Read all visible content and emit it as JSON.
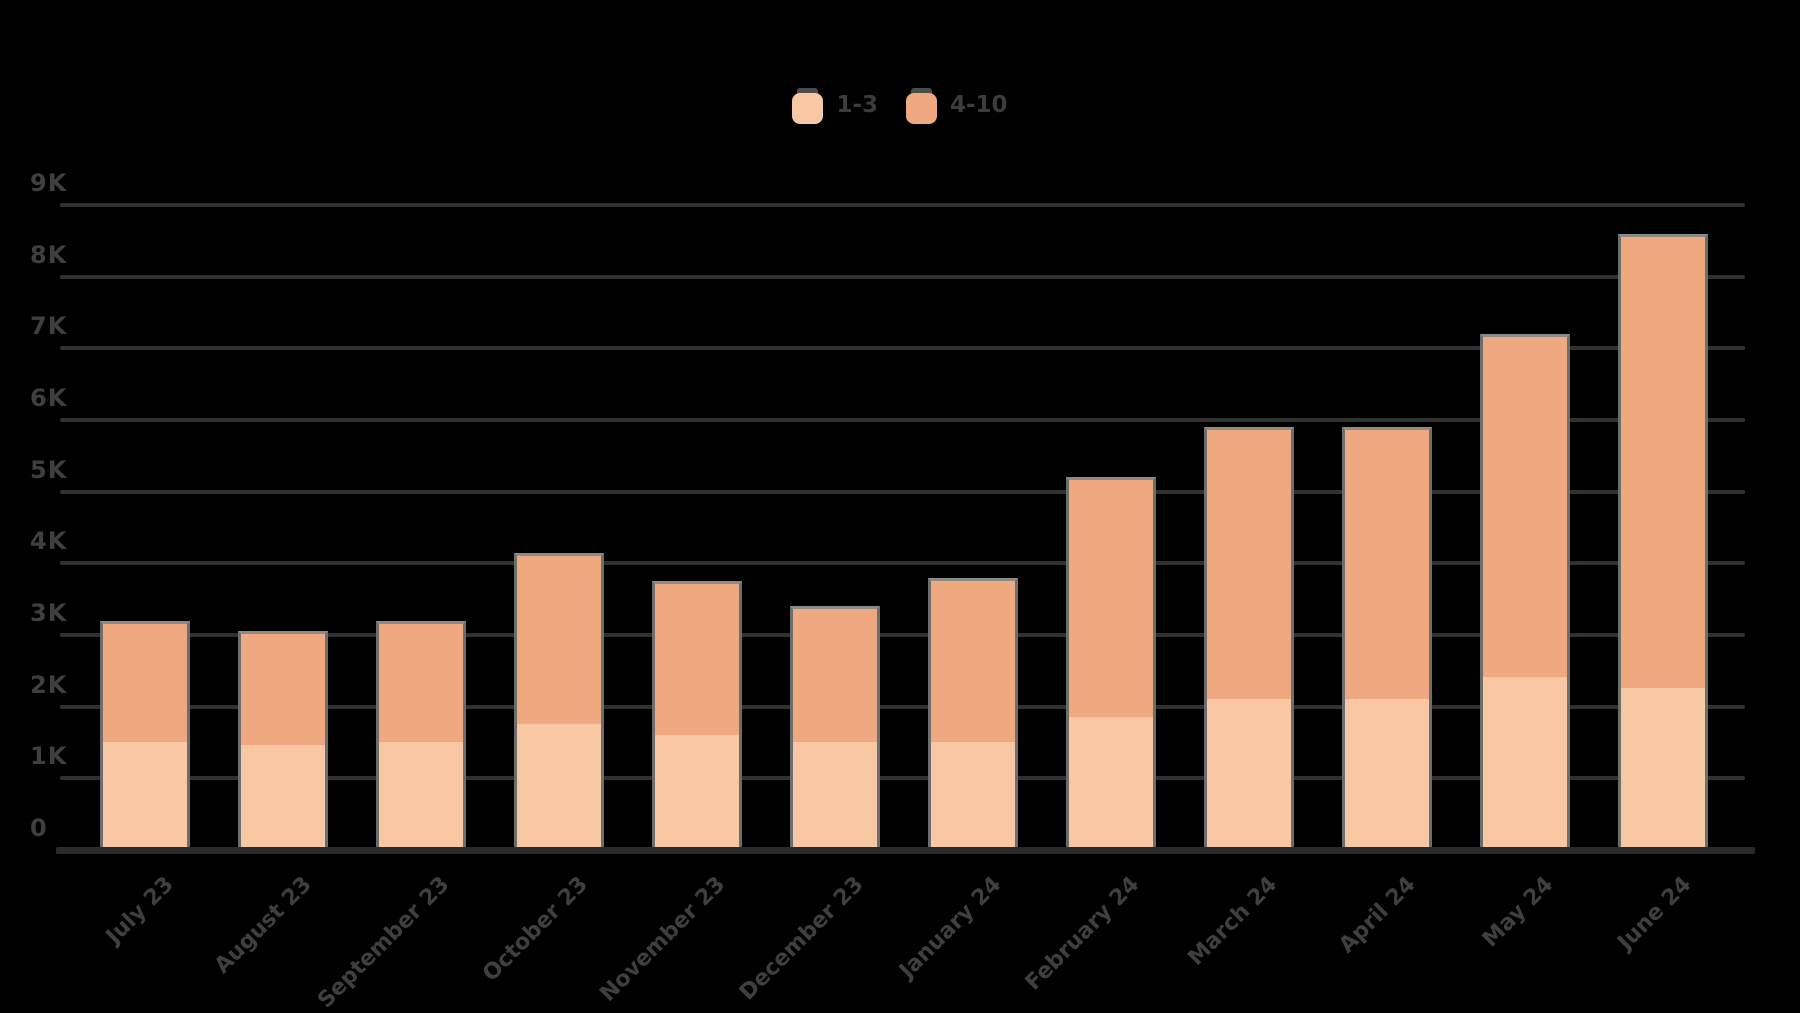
{
  "legend": {
    "items": [
      {
        "label": "1-3",
        "color": "#F8C7A4"
      },
      {
        "label": "4-10",
        "color": "#EEA980"
      }
    ]
  },
  "chart_data": {
    "type": "bar",
    "stacked": true,
    "title": "",
    "xlabel": "",
    "ylabel": "",
    "categories": [
      "July 23",
      "August 23",
      "September 23",
      "October 23",
      "November 23",
      "December 23",
      "January 24",
      "February 24",
      "March 24",
      "April 24",
      "May 24",
      "June 24"
    ],
    "series": [
      {
        "name": "1-3",
        "color": "#F8C7A4",
        "values": [
          1550,
          1500,
          1550,
          1800,
          1650,
          1550,
          1550,
          1900,
          2150,
          2150,
          2450,
          2300
        ]
      },
      {
        "name": "4-10",
        "color": "#EEA980",
        "values": [
          1650,
          1550,
          1650,
          2350,
          2100,
          1850,
          2250,
          3300,
          3750,
          3750,
          4750,
          6300
        ]
      }
    ],
    "totals": [
      3200,
      3050,
      3200,
      4150,
      3750,
      3400,
      3800,
      5200,
      5900,
      5900,
      7200,
      8600
    ],
    "ylim": [
      0,
      9000
    ],
    "ytick_step": 1000,
    "yticks": [
      "0",
      "1K",
      "2K",
      "3K",
      "4K",
      "5K",
      "6K",
      "7K",
      "8K",
      "9K"
    ],
    "grid": true,
    "legend_position": "top-center"
  },
  "colors": {
    "background": "#000000",
    "gridline": "#313131",
    "axis_line": "#2b2b2b",
    "tick_text": "#3f3f3f",
    "bar_border": "#6d6d6d"
  }
}
